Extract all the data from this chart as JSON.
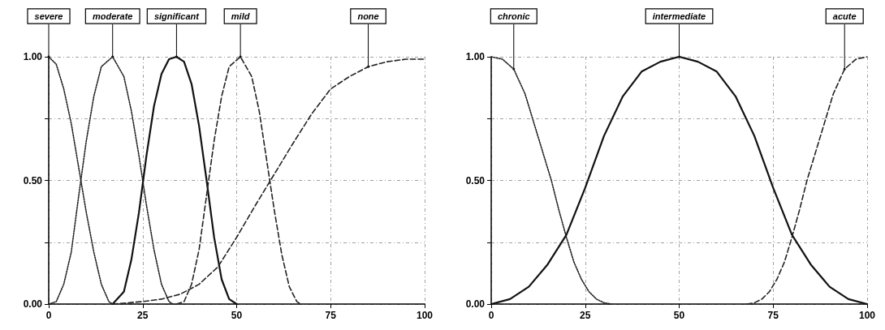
{
  "chart_data": [
    {
      "type": "line",
      "x": [
        0,
        2,
        4,
        6,
        8,
        10,
        12,
        14,
        16,
        17
      ],
      "xlim": [
        0,
        100
      ],
      "xticks": [
        0,
        25,
        50,
        75,
        100
      ],
      "ylim": [
        0,
        1
      ],
      "yticks": [
        {
          "value": 0,
          "label": "0.00"
        },
        {
          "value": 0.25,
          "label": null
        },
        {
          "value": 0.5,
          "label": "0.50"
        },
        {
          "value": 0.75,
          "label": null
        },
        {
          "value": 1,
          "label": "1.00"
        }
      ],
      "grid": true,
      "marker": "none",
      "series": [
        {
          "color": "#222222",
          "line_style": "dotted",
          "values": [
            1,
            0.97,
            0.87,
            0.73,
            0.55,
            0.37,
            0.21,
            0.08,
            0.01,
            0
          ]
        },
        {
          "color": "#222222",
          "line_style": "dotted",
          "x": [
            0,
            2,
            4,
            6,
            8,
            10,
            12,
            14,
            17,
            20,
            22,
            24,
            26,
            28,
            30,
            32,
            33
          ],
          "values": [
            0,
            0.01,
            0.08,
            0.21,
            0.44,
            0.66,
            0.84,
            0.96,
            1,
            0.92,
            0.78,
            0.6,
            0.4,
            0.22,
            0.08,
            0.01,
            0
          ]
        },
        {
          "color": "#111111",
          "line_style": "solid",
          "x": [
            17,
            20,
            22,
            24,
            26,
            28,
            30,
            32,
            34,
            36,
            38,
            40,
            42,
            44,
            46,
            48,
            50
          ],
          "values": [
            0,
            0.05,
            0.18,
            0.37,
            0.6,
            0.8,
            0.93,
            0.99,
            1,
            0.98,
            0.89,
            0.72,
            0.5,
            0.27,
            0.1,
            0.02,
            0
          ]
        },
        {
          "color": "#222222",
          "line_style": "dashed",
          "x": [
            34,
            36,
            38,
            40,
            42,
            44,
            46,
            48,
            51,
            54,
            56,
            58,
            60,
            62,
            64,
            66,
            67
          ],
          "values": [
            0,
            0.01,
            0.08,
            0.22,
            0.44,
            0.66,
            0.84,
            0.96,
            1,
            0.92,
            0.78,
            0.58,
            0.38,
            0.2,
            0.07,
            0.01,
            0
          ]
        },
        {
          "color": "#222222",
          "line_style": "dashed",
          "x": [
            17,
            25,
            30,
            35,
            40,
            45,
            50,
            55,
            59,
            65,
            70,
            75,
            80,
            85,
            90,
            95,
            100
          ],
          "values": [
            0,
            0.01,
            0.02,
            0.04,
            0.08,
            0.15,
            0.27,
            0.4,
            0.5,
            0.65,
            0.77,
            0.87,
            0.92,
            0.96,
            0.98,
            0.99,
            0.99
          ]
        }
      ],
      "annotations": [
        {
          "text": "severe",
          "x": 0,
          "y": 1
        },
        {
          "text": "moderate",
          "x": 17,
          "y": 1
        },
        {
          "text": "significant",
          "x": 34,
          "y": 1
        },
        {
          "text": "mild",
          "x": 51,
          "y": 1
        },
        {
          "text": "none",
          "x": 85,
          "y": 0.96
        }
      ]
    },
    {
      "type": "line",
      "x": [
        0,
        3,
        6,
        9,
        12,
        14,
        16,
        18,
        20,
        22,
        24,
        26,
        28,
        30,
        32
      ],
      "xlim": [
        0,
        100
      ],
      "xticks": [
        0,
        25,
        50,
        75,
        100
      ],
      "ylim": [
        0,
        1
      ],
      "yticks": [
        {
          "value": 0,
          "label": "0.00"
        },
        {
          "value": 0.25,
          "label": null
        },
        {
          "value": 0.5,
          "label": "0.50"
        },
        {
          "value": 0.75,
          "label": null
        },
        {
          "value": 1,
          "label": "1.00"
        }
      ],
      "grid": true,
      "marker": "none",
      "series": [
        {
          "color": "#222222",
          "line_style": "dotted",
          "values": [
            1,
            0.99,
            0.95,
            0.85,
            0.7,
            0.6,
            0.5,
            0.38,
            0.27,
            0.17,
            0.1,
            0.05,
            0.02,
            0.005,
            0
          ]
        },
        {
          "color": "#111111",
          "line_style": "solid",
          "x": [
            0,
            5,
            10,
            15,
            20,
            25,
            30,
            35,
            40,
            45,
            50,
            55,
            60,
            65,
            70,
            75,
            80,
            85,
            90,
            95,
            100
          ],
          "values": [
            0,
            0.02,
            0.07,
            0.16,
            0.28,
            0.47,
            0.68,
            0.84,
            0.94,
            0.98,
            1,
            0.98,
            0.94,
            0.84,
            0.68,
            0.47,
            0.28,
            0.16,
            0.07,
            0.02,
            0
          ]
        },
        {
          "color": "#222222",
          "line_style": "dashed",
          "x": [
            68,
            70,
            72,
            74,
            76,
            78,
            80,
            82,
            84,
            86,
            88,
            91,
            94,
            97,
            100
          ],
          "values": [
            0,
            0.005,
            0.02,
            0.05,
            0.1,
            0.17,
            0.27,
            0.38,
            0.5,
            0.6,
            0.7,
            0.85,
            0.95,
            0.99,
            1
          ]
        }
      ],
      "annotations": [
        {
          "text": "chronic",
          "x": 6,
          "y": 0.95
        },
        {
          "text": "intermediate",
          "x": 50,
          "y": 1
        },
        {
          "text": "acute",
          "x": 94,
          "y": 0.95
        }
      ]
    }
  ]
}
